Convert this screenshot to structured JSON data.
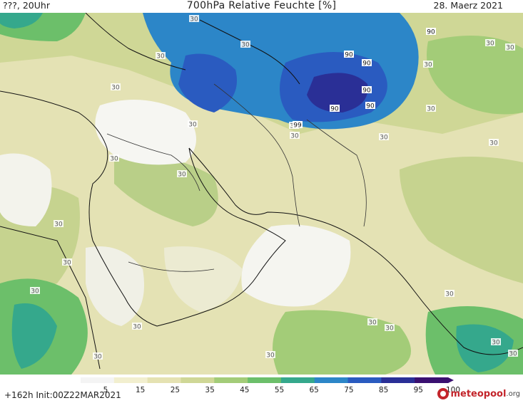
{
  "header": {
    "left": "???, 20Uhr",
    "title": "700hPa Relative Feuchte [%]",
    "right": "28. Maerz 2021"
  },
  "footer": {
    "left": "+162h  Init:00Z22MAR2021",
    "logo_main": "meteopool",
    "logo_tld": ".org"
  },
  "legend": {
    "ticks": [
      "5",
      "15",
      "25",
      "35",
      "45",
      "55",
      "65",
      "75",
      "85",
      "95",
      "100"
    ],
    "colors": [
      "#f4f4f4",
      "#f2efcf",
      "#e5e2b2",
      "#cfd796",
      "#a3cc78",
      "#6cbf6a",
      "#35a88c",
      "#2c86c8",
      "#2a5bc0",
      "#2a2f96",
      "#3a1070"
    ]
  },
  "contour_labels": [
    "30",
    "30",
    "30",
    "30",
    "30",
    "30",
    "30",
    "30",
    "30",
    "30",
    "30",
    "30",
    "30",
    "30",
    "30",
    "30",
    "30",
    "30",
    "30",
    "30",
    "30",
    "30",
    "30",
    "30",
    "30",
    "30",
    "90",
    "90",
    "90",
    "90",
    "90",
    "90",
    "99"
  ]
}
